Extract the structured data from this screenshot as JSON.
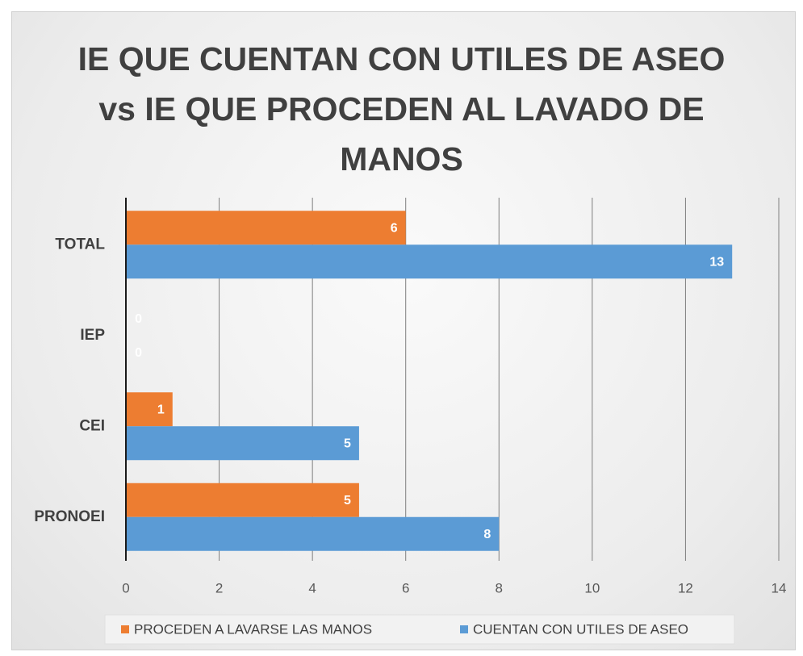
{
  "chart_data": {
    "type": "bar",
    "orientation": "horizontal",
    "title": "IE QUE CUENTAN CON UTILES DE ASEO vs IE QUE PROCEDEN AL LAVADO DE MANOS",
    "categories": [
      "TOTAL",
      "IEP",
      "CEI",
      "PRONOEI"
    ],
    "series": [
      {
        "name": "PROCEDEN A LAVARSE LAS MANOS",
        "color": "#ed7d31",
        "values": [
          6,
          0,
          1,
          5
        ]
      },
      {
        "name": "CUENTAN CON UTILES DE ASEO",
        "color": "#5b9bd5",
        "values": [
          13,
          0,
          5,
          8
        ]
      }
    ],
    "xlim": [
      0,
      14
    ],
    "xticks": [
      0,
      2,
      4,
      6,
      8,
      10,
      12,
      14
    ],
    "grid": true,
    "legend": "bottom"
  }
}
